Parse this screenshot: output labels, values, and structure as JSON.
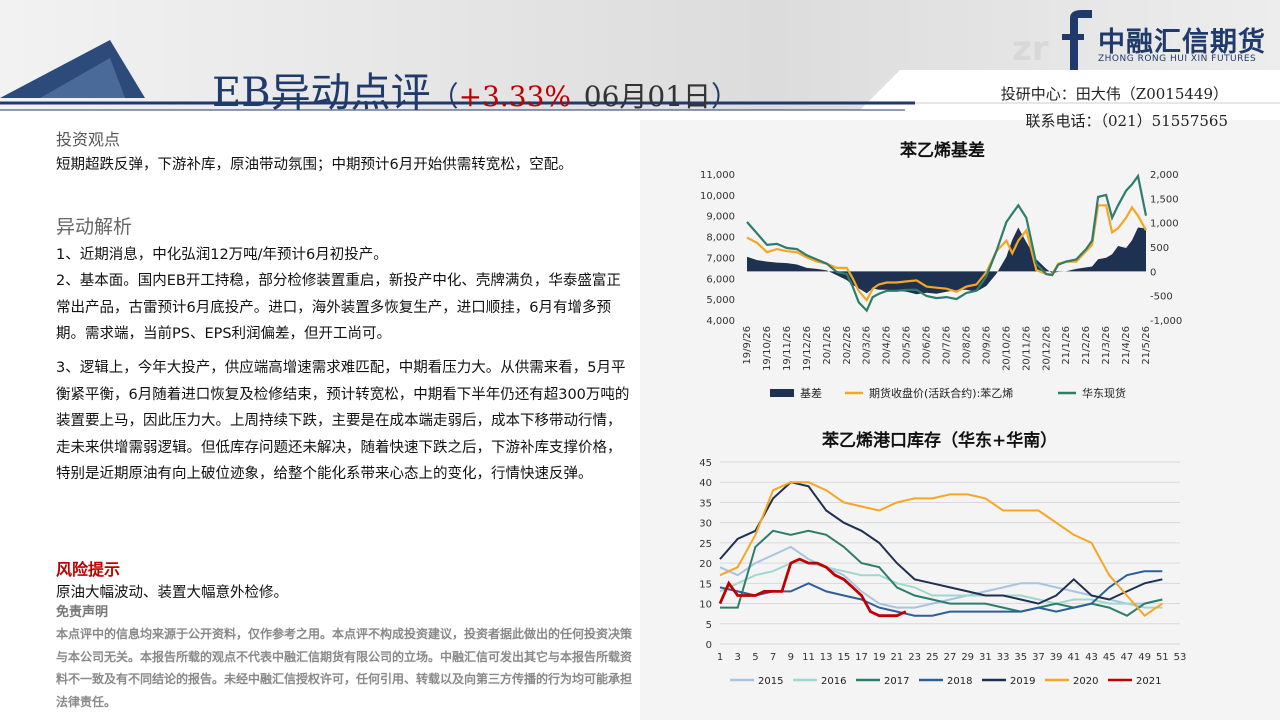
{
  "header": {
    "title": "EB异动点评",
    "paren_open": "（",
    "change": "+3.33%",
    "date": "06月01日",
    "paren_close": "）",
    "logo": "中融汇信期货",
    "logo_sub": "ZHONG RONG HUI XIN FUTURES",
    "contact_line1": "投研中心：田大伟（Z0015449）",
    "contact_line2": "联系电话：（021）51557565"
  },
  "left": {
    "view_heading": "投资观点",
    "view_text": "短期超跌反弹，下游补库，原油带动氛围；中期预计6月开始供需转宽松，空配。",
    "analysis_heading": "异动解析",
    "p1": "1、近期消息，中化弘润12万吨/年预计6月初投产。",
    "p2": "2、基本面。国内EB开工持稳，部分检修装置重启，新投产中化、壳牌满负，华泰盛富正常出产品，古雷预计6月底投产。进口，海外装置多恢复生产，进口顺挂，6月有增多预期。需求端，当前PS、EPS利润偏差，但开工尚可。",
    "p3": "3、逻辑上，今年大投产，供应端高增速需求难匹配，中期看压力大。从供需来看，5月平衡紧平衡，6月随着进口恢复及检修结束，预计转宽松，中期看下半年仍还有超300万吨的装置要上马，因此压力大。上周持续下跌，主要是在成本端走弱后，成本下移带动行情，走未来供增需弱逻辑。但低库存问题还未解决，随着快速下跌之后，下游补库支撑价格，特别是近期原油有向上破位迹象，给整个能化系带来心态上的变化，行情快速反弹。",
    "risk_heading": "风险提示",
    "risk_text": "原油大幅波动、装置大幅意外检修。",
    "disclaimer_heading": "免责声明",
    "disclaimer_text": "本点评中的信息均来源于公开资料，仅作参考之用。本点评不构成投资建议，投资者据此做出的任何投资决策与本公司无关。本报告所载的观点不代表中融汇信期货有限公司的立场。中融汇信可发出其它与本报告所载资料不一致及有不同结论的报告。未经中融汇信授权许可，任何引用、转载以及向第三方传播的行为均可能承担法律责任。"
  },
  "colors": {
    "navy": "#1f3a6b",
    "red": "#c00000",
    "basis": "#1f3150",
    "futures": "#f5a623",
    "spot": "#2e7d6b"
  },
  "chart_data": [
    {
      "type": "line",
      "title": "苯乙烯基差",
      "x_ticks": [
        "19/9/26",
        "19/10/26",
        "19/11/26",
        "19/12/26",
        "20/1/26",
        "20/2/26",
        "20/3/26",
        "20/4/26",
        "20/5/26",
        "20/6/26",
        "20/7/26",
        "20/8/26",
        "20/9/26",
        "20/10/26",
        "20/11/26",
        "20/12/26",
        "21/1/26",
        "21/2/26",
        "21/3/26",
        "21/4/26",
        "21/5/26"
      ],
      "ylim_left": [
        4000,
        11000
      ],
      "ylim_right": [
        -1000,
        2000
      ],
      "y_ticks_left": [
        "4,000",
        "5,000",
        "6,000",
        "7,000",
        "8,000",
        "9,000",
        "10,000",
        "11,000"
      ],
      "y_ticks_right": [
        "-1,000",
        "-500",
        "0",
        "500",
        "1,000",
        "1,500",
        "2,000"
      ],
      "x_index_max": 20,
      "series": [
        {
          "name": "基差",
          "axis": "right",
          "style": "area",
          "x": [
            0,
            0.5,
            1,
            1.5,
            2,
            2.5,
            3,
            3.5,
            4,
            4.5,
            5,
            5.3,
            5.6,
            6,
            6.3,
            6.6,
            7,
            7.5,
            8,
            8.5,
            9,
            9.5,
            10,
            10.5,
            11,
            11.5,
            12,
            12.5,
            13,
            13.3,
            13.6,
            14,
            14.5,
            15,
            15.3,
            15.6,
            16,
            16.5,
            17,
            17.3,
            17.6,
            18,
            18.3,
            18.6,
            19,
            19.3,
            19.6,
            20
          ],
          "y": [
            300,
            230,
            200,
            180,
            170,
            140,
            70,
            50,
            20,
            -80,
            -180,
            -280,
            -350,
            -450,
            -350,
            -380,
            -380,
            -400,
            -420,
            -470,
            -440,
            -460,
            -420,
            -390,
            -380,
            -420,
            -300,
            -50,
            300,
            650,
            900,
            600,
            250,
            50,
            -40,
            -10,
            0,
            50,
            80,
            100,
            250,
            280,
            350,
            520,
            480,
            640,
            900,
            880
          ]
        },
        {
          "name": "期货收盘价(活跃合约):苯乙烯",
          "axis": "left",
          "x": [
            0,
            0.5,
            1,
            1.5,
            2,
            2.5,
            3,
            3.5,
            4,
            4.5,
            5,
            5.3,
            5.6,
            6,
            6.3,
            6.6,
            7,
            7.5,
            8,
            8.5,
            9,
            9.5,
            10,
            10.5,
            11,
            11.5,
            12,
            12.5,
            13,
            13.3,
            13.6,
            14,
            14.5,
            15,
            15.3,
            15.6,
            16,
            16.5,
            17,
            17.3,
            17.6,
            18,
            18.3,
            18.6,
            19,
            19.3,
            19.6,
            20
          ],
          "y": [
            7950,
            7700,
            7250,
            7400,
            7300,
            7250,
            7000,
            6800,
            6700,
            6500,
            6500,
            6000,
            5400,
            4950,
            5500,
            5700,
            5800,
            5800,
            5850,
            5900,
            5600,
            5550,
            5500,
            5350,
            5600,
            5700,
            6300,
            7300,
            7800,
            7200,
            7800,
            8300,
            6400,
            6200,
            6200,
            6700,
            6800,
            6800,
            7300,
            7600,
            9500,
            9500,
            8200,
            8400,
            8900,
            9400,
            9000,
            8300
          ]
        },
        {
          "name": "华东现货",
          "axis": "left",
          "x": [
            0,
            0.5,
            1,
            1.5,
            2,
            2.5,
            3,
            3.5,
            4,
            4.5,
            5,
            5.3,
            5.6,
            6,
            6.3,
            6.6,
            7,
            7.5,
            8,
            8.5,
            9,
            9.5,
            10,
            10.5,
            11,
            11.5,
            12,
            12.5,
            13,
            13.3,
            13.6,
            14,
            14.5,
            15,
            15.3,
            15.6,
            16,
            16.5,
            17,
            17.3,
            17.6,
            18,
            18.3,
            18.6,
            19,
            19.3,
            19.6,
            20
          ],
          "y": [
            8700,
            8150,
            7600,
            7650,
            7450,
            7400,
            7100,
            6900,
            6700,
            6300,
            6200,
            5600,
            4850,
            4450,
            5100,
            5250,
            5400,
            5400,
            5450,
            5450,
            5150,
            5050,
            5100,
            5000,
            5300,
            5400,
            6100,
            7300,
            8700,
            9100,
            9500,
            8900,
            6700,
            6200,
            6150,
            6650,
            6800,
            6900,
            7400,
            7800,
            9900,
            10000,
            8900,
            9500,
            10200,
            10500,
            10900,
            9000
          ]
        }
      ]
    },
    {
      "type": "line",
      "title": "苯乙烯港口库存（华东+华南）",
      "x_ticks": [
        "1",
        "3",
        "5",
        "7",
        "9",
        "11",
        "13",
        "15",
        "17",
        "19",
        "21",
        "23",
        "25",
        "27",
        "29",
        "31",
        "33",
        "35",
        "37",
        "39",
        "41",
        "43",
        "45",
        "47",
        "49",
        "51",
        "53"
      ],
      "ylim": [
        0,
        45
      ],
      "y_ticks": [
        "0",
        "5",
        "10",
        "15",
        "20",
        "25",
        "30",
        "35",
        "40",
        "45"
      ],
      "series": [
        {
          "name": "2015",
          "color": "#a9c4e0",
          "x": [
            1,
            3,
            5,
            7,
            9,
            11,
            13,
            15,
            17,
            19,
            21,
            23,
            25,
            27,
            29,
            31,
            33,
            35,
            37,
            39,
            41,
            43,
            45,
            47,
            49,
            51
          ],
          "y": [
            19,
            17,
            20,
            22,
            24,
            21,
            19,
            17,
            13,
            10,
            9,
            9,
            10,
            11,
            12,
            13,
            14,
            15,
            15,
            14,
            13,
            12,
            11,
            10,
            10,
            11
          ]
        },
        {
          "name": "2016",
          "color": "#9fd8cf",
          "x": [
            1,
            3,
            5,
            7,
            9,
            11,
            13,
            15,
            17,
            19,
            21,
            23,
            25,
            27,
            29,
            31,
            33,
            35,
            37,
            39,
            41,
            43,
            45,
            47,
            49,
            51
          ],
          "y": [
            13,
            15,
            17,
            18,
            20,
            20,
            19,
            18,
            17,
            17,
            15,
            14,
            12,
            12,
            12,
            12,
            12,
            12,
            11,
            10,
            11,
            11,
            10,
            10,
            9,
            9
          ]
        },
        {
          "name": "2017",
          "color": "#2e7d6b",
          "x": [
            1,
            3,
            5,
            7,
            9,
            11,
            13,
            15,
            17,
            19,
            21,
            23,
            25,
            27,
            29,
            31,
            33,
            35,
            37,
            39,
            41,
            43,
            45,
            47,
            49,
            51
          ],
          "y": [
            9,
            9,
            24,
            28,
            27,
            28,
            27,
            24,
            20,
            19,
            14,
            12,
            11,
            10,
            10,
            10,
            9,
            8,
            9,
            10,
            9,
            10,
            9,
            7,
            10,
            11
          ]
        },
        {
          "name": "2018",
          "color": "#2f5f98",
          "x": [
            1,
            3,
            5,
            7,
            9,
            11,
            13,
            15,
            17,
            19,
            21,
            23,
            25,
            27,
            29,
            31,
            33,
            35,
            37,
            39,
            41,
            43,
            45,
            47,
            49,
            51
          ],
          "y": [
            14,
            13,
            12,
            13,
            13,
            15,
            13,
            12,
            11,
            9,
            8,
            7,
            7,
            8,
            8,
            8,
            8,
            8,
            9,
            8,
            9,
            10,
            14,
            17,
            18,
            18
          ]
        },
        {
          "name": "2019",
          "color": "#1f3150",
          "x": [
            1,
            3,
            5,
            7,
            9,
            11,
            13,
            15,
            17,
            19,
            21,
            23,
            25,
            27,
            29,
            31,
            33,
            35,
            37,
            39,
            41,
            43,
            45,
            47,
            49,
            51
          ],
          "y": [
            21,
            26,
            28,
            36,
            40,
            39,
            33,
            30,
            28,
            25,
            20,
            16,
            15,
            14,
            13,
            12,
            12,
            11,
            10,
            12,
            16,
            12,
            11,
            13,
            15,
            16
          ]
        },
        {
          "name": "2020",
          "color": "#f5a623",
          "x": [
            1,
            3,
            5,
            7,
            9,
            11,
            13,
            15,
            17,
            19,
            21,
            23,
            25,
            27,
            29,
            31,
            33,
            35,
            37,
            39,
            41,
            43,
            45,
            47,
            49,
            51
          ],
          "y": [
            17,
            19,
            27,
            38,
            40,
            40,
            38,
            35,
            34,
            33,
            35,
            36,
            36,
            37,
            37,
            36,
            33,
            33,
            33,
            30,
            27,
            25,
            17,
            12,
            7,
            10
          ]
        },
        {
          "name": "2021",
          "color": "#c00000",
          "x": [
            1,
            2,
            3,
            4,
            5,
            6,
            7,
            8,
            9,
            10,
            11,
            12,
            13,
            14,
            15,
            16,
            17,
            18,
            19,
            20,
            21,
            22
          ],
          "y": [
            10,
            15,
            12,
            12,
            12,
            13,
            13,
            13,
            20,
            21,
            20,
            20,
            19,
            17,
            16,
            14,
            12,
            8,
            7,
            7,
            7,
            8
          ]
        }
      ]
    }
  ]
}
